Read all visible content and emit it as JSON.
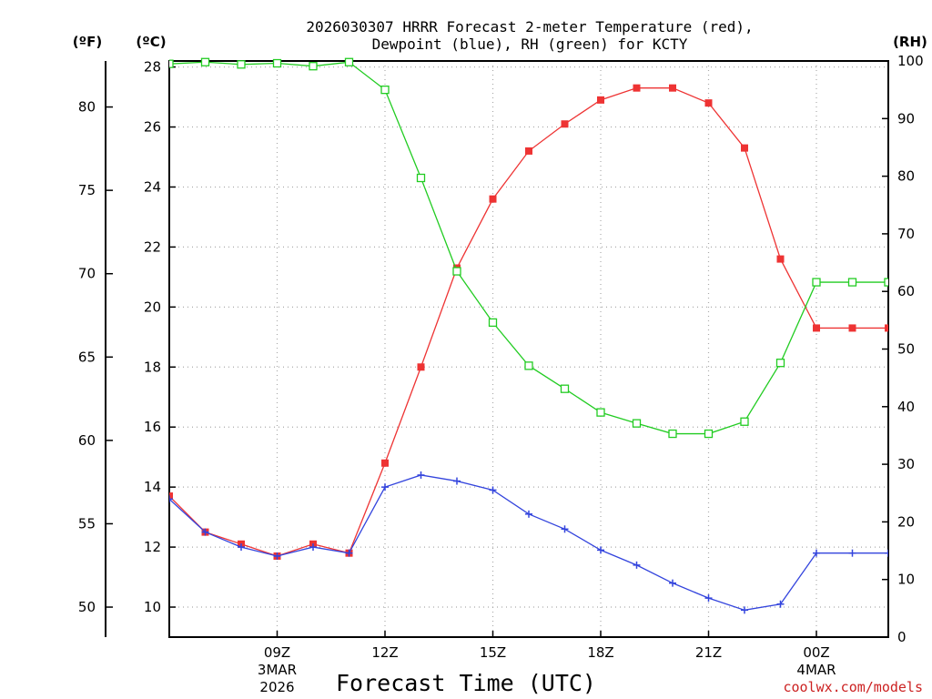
{
  "chart_data": {
    "type": "line",
    "title_line1": "2026030307 HRRR Forecast 2-meter Temperature (red),",
    "title_line2": "Dewpoint (blue), RH (green) for KCTY",
    "xlabel": "Forecast Time (UTC)",
    "ylabel_left_outer": "(ºF)",
    "ylabel_left_inner": "(ºC)",
    "ylabel_right": "(RH)",
    "x_hours": [
      6,
      7,
      8,
      9,
      10,
      11,
      12,
      13,
      14,
      15,
      16,
      17,
      18,
      19,
      20,
      21,
      22,
      23,
      24,
      25,
      26
    ],
    "xlim": [
      6,
      26
    ],
    "x_ticks": [
      {
        "hour": 9,
        "label": "09Z",
        "sub1": "3MAR",
        "sub2": "2026"
      },
      {
        "hour": 12,
        "label": "12Z",
        "sub1": "",
        "sub2": ""
      },
      {
        "hour": 15,
        "label": "15Z",
        "sub1": "",
        "sub2": ""
      },
      {
        "hour": 18,
        "label": "18Z",
        "sub1": "",
        "sub2": ""
      },
      {
        "hour": 21,
        "label": "21Z",
        "sub1": "",
        "sub2": ""
      },
      {
        "hour": 24,
        "label": "00Z",
        "sub1": "4MAR",
        "sub2": ""
      }
    ],
    "celsius_ylim": [
      9.0,
      28.2
    ],
    "celsius_ticks": [
      10,
      12,
      14,
      16,
      18,
      20,
      22,
      24,
      26,
      28
    ],
    "fahrenheit_ticks": [
      50,
      55,
      60,
      65,
      70,
      75,
      80
    ],
    "rh_ylim": [
      0,
      100
    ],
    "rh_ticks": [
      0,
      10,
      20,
      30,
      40,
      50,
      60,
      70,
      80,
      90,
      100
    ],
    "grid": true,
    "series": [
      {
        "name": "2-meter Temperature",
        "axis": "celsius",
        "color": "#ee3333",
        "marker": "filled-square",
        "values": [
          13.7,
          12.5,
          12.1,
          11.7,
          12.1,
          11.8,
          14.8,
          18.0,
          21.3,
          23.6,
          25.2,
          26.1,
          26.9,
          27.3,
          27.3,
          26.8,
          25.3,
          21.6,
          19.3,
          19.3,
          19.3
        ]
      },
      {
        "name": "Dewpoint",
        "axis": "celsius",
        "color": "#3344dd",
        "marker": "plus",
        "values": [
          13.6,
          12.5,
          12.0,
          11.7,
          12.0,
          11.8,
          14.0,
          14.4,
          14.2,
          13.9,
          13.1,
          12.6,
          11.9,
          11.4,
          10.8,
          10.3,
          9.9,
          10.1,
          11.8,
          11.8,
          11.8
        ]
      },
      {
        "name": "RH",
        "axis": "rh",
        "color": "#22cc22",
        "marker": "open-square",
        "values": [
          99.5,
          99.8,
          99.4,
          99.6,
          99.1,
          99.8,
          95.0,
          79.7,
          63.5,
          54.6,
          47.1,
          43.1,
          39.0,
          37.1,
          35.3,
          35.3,
          37.4,
          47.6,
          61.6,
          61.6,
          61.6
        ]
      }
    ],
    "x_data_hours": [
      6,
      7,
      8,
      9,
      10,
      11,
      12,
      13,
      14,
      15,
      16,
      17,
      18,
      19,
      20,
      21,
      22,
      23,
      24,
      25,
      26
    ]
  },
  "credit": "coolwx.com/models",
  "colors": {
    "credit": "#cc2222",
    "grid": "#aaaaaa",
    "axis": "#000000"
  }
}
